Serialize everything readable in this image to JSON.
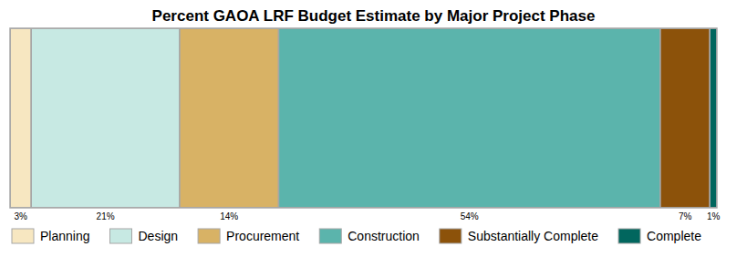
{
  "chart_data": {
    "type": "bar",
    "title": "Percent GAOA LRF Budget Estimate by Major Project Phase",
    "orientation": "horizontal",
    "stacked": true,
    "data_labels": true,
    "tick_labels": false,
    "legend": "bottom",
    "categories": [
      null
    ],
    "xlim": [
      0,
      100
    ],
    "series": [
      {
        "name": "Planning",
        "color": "#f7e7c1",
        "values": [
          3
        ],
        "value_labels": [
          "3%"
        ]
      },
      {
        "name": "Design",
        "color": "#c7e9e3",
        "values": [
          21
        ],
        "value_labels": [
          "21%"
        ]
      },
      {
        "name": "Procurement",
        "color": "#d8b265",
        "values": [
          14
        ],
        "value_labels": [
          "14%"
        ]
      },
      {
        "name": "Construction",
        "color": "#5bb4ac",
        "values": [
          54
        ],
        "value_labels": [
          "54%"
        ]
      },
      {
        "name": "Substantially Complete",
        "color": "#8c520a",
        "values": [
          7
        ],
        "value_labels": [
          "7%"
        ]
      },
      {
        "name": "Complete",
        "color": "#01665e",
        "values": [
          1
        ],
        "value_labels": [
          "1%"
        ]
      }
    ]
  }
}
